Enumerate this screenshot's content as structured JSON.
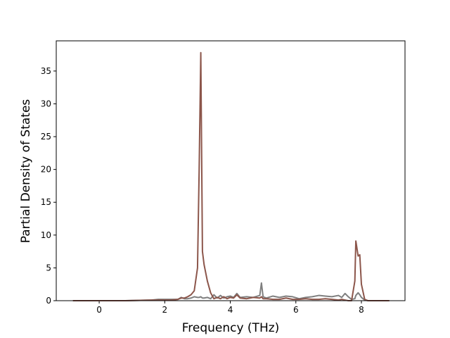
{
  "chart_data": {
    "type": "line",
    "x_label": "Frequency (THz)",
    "y_label": "Partial Density of States",
    "x": [
      -0.8,
      0.8,
      1.6,
      1.8,
      2.0,
      2.2,
      2.4,
      2.5,
      2.6,
      2.7,
      2.8,
      2.9,
      3.0,
      3.05,
      3.1,
      3.15,
      3.2,
      3.3,
      3.4,
      3.5,
      3.6,
      3.7,
      3.8,
      3.9,
      4.0,
      4.1,
      4.2,
      4.3,
      4.5,
      4.7,
      4.9,
      4.95,
      5.0,
      5.1,
      5.3,
      5.5,
      5.7,
      5.9,
      6.1,
      6.3,
      6.5,
      6.7,
      6.9,
      7.1,
      7.3,
      7.4,
      7.5,
      7.6,
      7.7,
      7.8,
      7.83,
      7.9,
      7.95,
      8.0,
      8.1,
      8.2,
      8.85
    ],
    "series": [
      {
        "color": "#7f7f7f",
        "values": [
          0,
          0,
          0.1,
          0.2,
          0.2,
          0.2,
          0.2,
          0.5,
          0.3,
          0.3,
          0.4,
          0.6,
          0.5,
          0.5,
          0.6,
          0.4,
          0.4,
          0.5,
          0.3,
          0.9,
          0.4,
          0.8,
          0.4,
          0.6,
          0.7,
          0.5,
          1.1,
          0.5,
          0.6,
          0.5,
          0.8,
          2.7,
          0.6,
          0.4,
          0.7,
          0.5,
          0.7,
          0.6,
          0.3,
          0.5,
          0.6,
          0.8,
          0.7,
          0.6,
          0.8,
          0.5,
          1.1,
          0.6,
          0.2,
          0.3,
          0.8,
          1.2,
          0.9,
          0.5,
          0.1,
          0,
          0
        ]
      },
      {
        "color": "#8c564b",
        "values": [
          0,
          0,
          0.1,
          0.1,
          0.1,
          0.1,
          0.2,
          0.4,
          0.4,
          0.6,
          0.9,
          1.5,
          5,
          20,
          37.8,
          7.5,
          5.5,
          3,
          1.2,
          0.3,
          0.5,
          0.3,
          0.6,
          0.3,
          0.5,
          0.4,
          0.9,
          0.4,
          0.3,
          0.5,
          0.4,
          0.6,
          0.3,
          0.3,
          0.2,
          0.2,
          0.4,
          0.2,
          0.2,
          0.3,
          0.2,
          0.2,
          0.3,
          0.2,
          0.1,
          0.2,
          0.1,
          0,
          0,
          3,
          9.1,
          6.8,
          7,
          2.5,
          0.2,
          0,
          0
        ]
      }
    ],
    "xlim": [
      -1.31,
      9.33
    ],
    "xticks": [
      0,
      2,
      4,
      6,
      8
    ],
    "ylim": [
      0,
      39.6
    ],
    "yticks": [
      0,
      5,
      10,
      15,
      20,
      25,
      30,
      35
    ],
    "grid": false
  }
}
